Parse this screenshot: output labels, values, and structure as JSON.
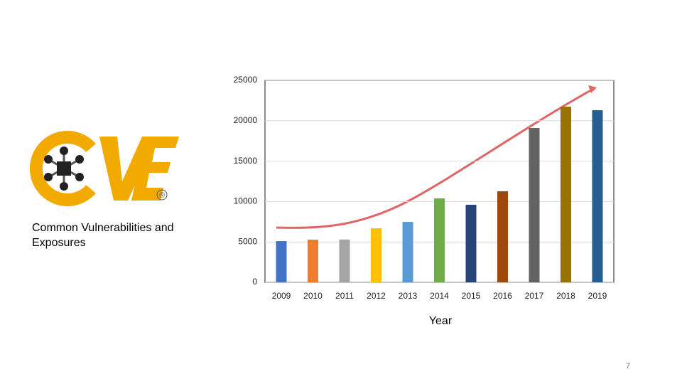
{
  "chart_data": {
    "type": "bar",
    "x_label": "Year",
    "categories": [
      "2009",
      "2010",
      "2011",
      "2012",
      "2013",
      "2014",
      "2015",
      "2016",
      "2017",
      "2018",
      "2019"
    ],
    "values": [
      5100,
      5280,
      5300,
      6690,
      7480,
      10390,
      9600,
      11270,
      19100,
      21740,
      21300
    ],
    "colors": [
      "#4472c4",
      "#ed7d31",
      "#a5a5a5",
      "#ffc000",
      "#5b9bd5",
      "#70ad47",
      "#264478",
      "#9e480e",
      "#636363",
      "#997300",
      "#255e91"
    ],
    "ylim": [
      0,
      25000
    ],
    "yticks": [
      0,
      5000,
      10000,
      15000,
      20000,
      25000
    ],
    "grid": true
  },
  "caption": "Common Vulnerabilities and Exposures",
  "logo": {
    "registered": "®"
  },
  "page_number": "7"
}
